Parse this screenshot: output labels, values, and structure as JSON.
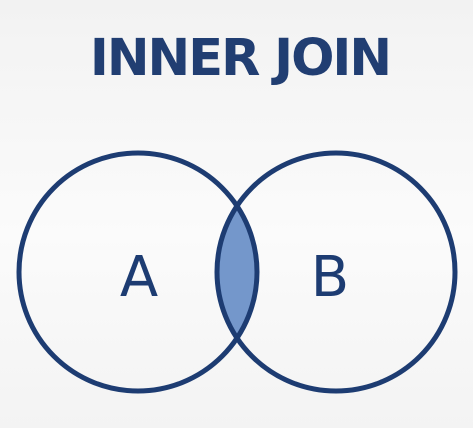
{
  "title": "INNER JOIN",
  "sets": [
    {
      "label": "A"
    },
    {
      "label": "B"
    }
  ],
  "colors": {
    "outline": "#1d3c72",
    "intersection_fill": "#7497cb",
    "title": "#213e72",
    "label": "#1d3c72"
  }
}
